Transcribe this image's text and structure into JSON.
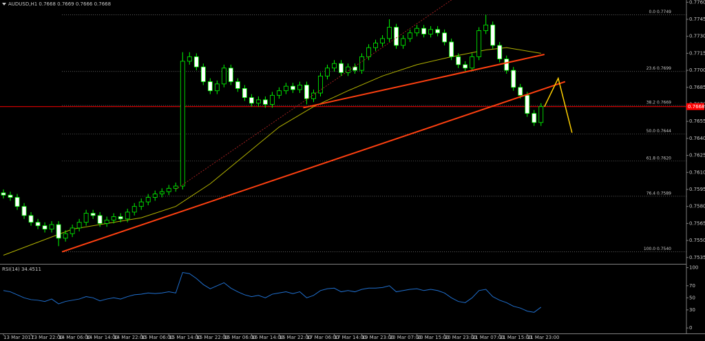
{
  "chart_data": [
    {
      "type": "candlestick",
      "title": "AUDUSD,H1 0.7668 0.7669 0.7666 0.7668",
      "color": "#00ff00",
      "up_fill": "#000000",
      "down_fill": "#ffffff",
      "open": [
        0.7592,
        0.759,
        0.7588,
        0.758,
        0.7572,
        0.7566,
        0.7563,
        0.756,
        0.7564,
        0.7552,
        0.7556,
        0.7561,
        0.7566,
        0.7574,
        0.7572,
        0.7565,
        0.7568,
        0.7571,
        0.7569,
        0.7575,
        0.758,
        0.7584,
        0.7588,
        0.7591,
        0.7593,
        0.7596,
        0.7598,
        0.7708,
        0.7712,
        0.7703,
        0.769,
        0.7682,
        0.7688,
        0.7702,
        0.769,
        0.7684,
        0.7676,
        0.7671,
        0.7674,
        0.767,
        0.7678,
        0.7682,
        0.7686,
        0.7683,
        0.7687,
        0.7675,
        0.768,
        0.7695,
        0.7702,
        0.7706,
        0.7698,
        0.7703,
        0.77,
        0.7712,
        0.772,
        0.7724,
        0.7728,
        0.7738,
        0.7722,
        0.7728,
        0.7733,
        0.7737,
        0.7732,
        0.7736,
        0.7733,
        0.7725,
        0.7712,
        0.7705,
        0.7702,
        0.7712,
        0.7735,
        0.774,
        0.7722,
        0.771,
        0.77,
        0.7685,
        0.7678,
        0.7662,
        0.7654
      ],
      "high": [
        0.7595,
        0.7593,
        0.7591,
        0.7583,
        0.7575,
        0.7569,
        0.7566,
        0.7567,
        0.7567,
        0.7559,
        0.7564,
        0.7569,
        0.7577,
        0.7577,
        0.7575,
        0.7571,
        0.7574,
        0.7574,
        0.7578,
        0.7583,
        0.7587,
        0.7591,
        0.7594,
        0.7596,
        0.7599,
        0.7601,
        0.7716,
        0.7716,
        0.7715,
        0.7706,
        0.7693,
        0.7691,
        0.7705,
        0.7705,
        0.7693,
        0.7687,
        0.7679,
        0.7677,
        0.7677,
        0.7681,
        0.7685,
        0.7689,
        0.7689,
        0.769,
        0.769,
        0.7683,
        0.7698,
        0.7705,
        0.7709,
        0.7709,
        0.7706,
        0.7706,
        0.7715,
        0.7723,
        0.7727,
        0.7731,
        0.7745,
        0.7741,
        0.7731,
        0.7736,
        0.774,
        0.774,
        0.7739,
        0.7739,
        0.7736,
        0.7728,
        0.7715,
        0.7708,
        0.7715,
        0.7738,
        0.7749,
        0.7743,
        0.7725,
        0.7713,
        0.7703,
        0.7688,
        0.7681,
        0.7665,
        0.7671
      ],
      "low": [
        0.7587,
        0.7585,
        0.7577,
        0.7569,
        0.7563,
        0.756,
        0.7557,
        0.7557,
        0.7545,
        0.7549,
        0.7553,
        0.7558,
        0.7563,
        0.7569,
        0.7562,
        0.7562,
        0.7565,
        0.7566,
        0.7566,
        0.7572,
        0.7577,
        0.7581,
        0.7585,
        0.7588,
        0.759,
        0.7593,
        0.7595,
        0.7705,
        0.77,
        0.7687,
        0.7679,
        0.7679,
        0.7685,
        0.7687,
        0.7681,
        0.7673,
        0.7668,
        0.7668,
        0.7667,
        0.7667,
        0.7675,
        0.7679,
        0.768,
        0.768,
        0.767,
        0.7672,
        0.7677,
        0.7692,
        0.7699,
        0.7695,
        0.7695,
        0.7697,
        0.7697,
        0.7709,
        0.7717,
        0.7721,
        0.7725,
        0.7719,
        0.7719,
        0.7725,
        0.773,
        0.7729,
        0.7729,
        0.773,
        0.7722,
        0.7709,
        0.7702,
        0.7699,
        0.7699,
        0.7709,
        0.7732,
        0.7719,
        0.7707,
        0.7697,
        0.7682,
        0.7675,
        0.7659,
        0.7651,
        0.7651
      ],
      "close": [
        0.759,
        0.7588,
        0.758,
        0.7572,
        0.7566,
        0.7563,
        0.756,
        0.7564,
        0.7552,
        0.7556,
        0.7561,
        0.7566,
        0.7574,
        0.7572,
        0.7565,
        0.7568,
        0.7571,
        0.7569,
        0.7575,
        0.758,
        0.7584,
        0.7588,
        0.7591,
        0.7593,
        0.7596,
        0.7598,
        0.7708,
        0.7712,
        0.7703,
        0.769,
        0.7682,
        0.7688,
        0.7702,
        0.769,
        0.7684,
        0.7676,
        0.7671,
        0.7674,
        0.767,
        0.7678,
        0.7682,
        0.7686,
        0.7683,
        0.7687,
        0.7675,
        0.768,
        0.7695,
        0.7702,
        0.7706,
        0.7698,
        0.7703,
        0.77,
        0.7712,
        0.772,
        0.7724,
        0.7728,
        0.7738,
        0.7722,
        0.7728,
        0.7733,
        0.7737,
        0.7732,
        0.7736,
        0.7733,
        0.7725,
        0.7712,
        0.7705,
        0.7702,
        0.7712,
        0.7735,
        0.774,
        0.7722,
        0.771,
        0.77,
        0.7685,
        0.7678,
        0.7662,
        0.7654,
        0.7668
      ],
      "xlim": [
        -0.5,
        99.1
      ],
      "ylim": [
        0.753,
        0.7762
      ],
      "yticks": [
        {
          "value": 0.776,
          "label": "0.7760"
        },
        {
          "value": 0.7745,
          "label": "0.7745"
        },
        {
          "value": 0.773,
          "label": "0.7730"
        },
        {
          "value": 0.7715,
          "label": "0.7715"
        },
        {
          "value": 0.77,
          "label": "0.7700"
        },
        {
          "value": 0.7685,
          "label": "0.7685"
        },
        {
          "value": 0.767,
          "label": "0.7670"
        },
        {
          "value": 0.7655,
          "label": "0.7655"
        },
        {
          "value": 0.764,
          "label": "0.7640"
        },
        {
          "value": 0.7625,
          "label": "0.7625"
        },
        {
          "value": 0.761,
          "label": "0.7610"
        },
        {
          "value": 0.7595,
          "label": "0.7595"
        },
        {
          "value": 0.758,
          "label": "0.7580"
        },
        {
          "value": 0.7565,
          "label": "0.7565"
        },
        {
          "value": 0.755,
          "label": "0.7550"
        },
        {
          "value": 0.7535,
          "label": "0.7535"
        }
      ],
      "xticks": [
        {
          "value": 0,
          "label": "13 Mar 2017"
        },
        {
          "value": 4,
          "label": "13 Mar 22:00"
        },
        {
          "value": 8,
          "label": "14 Mar 06:00"
        },
        {
          "value": 12,
          "label": "14 Mar 14:00"
        },
        {
          "value": 16,
          "label": "14 Mar 22:00"
        },
        {
          "value": 20,
          "label": "15 Mar 06:00"
        },
        {
          "value": 24,
          "label": "15 Mar 14:00"
        },
        {
          "value": 28,
          "label": "15 Mar 22:00"
        },
        {
          "value": 32,
          "label": "16 Mar 06:00"
        },
        {
          "value": 36,
          "label": "16 Mar 14:00"
        },
        {
          "value": 40,
          "label": "16 Mar 22:00"
        },
        {
          "value": 44,
          "label": "17 Mar 06:00"
        },
        {
          "value": 48,
          "label": "17 Mar 14:00"
        },
        {
          "value": 52,
          "label": "19 Mar 23:00"
        },
        {
          "value": 56,
          "label": "20 Mar 07:00"
        },
        {
          "value": 60,
          "label": "20 Mar 15:00"
        },
        {
          "value": 64,
          "label": "20 Mar 23:00"
        },
        {
          "value": 68,
          "label": "21 Mar 07:00"
        },
        {
          "value": 72,
          "label": "21 Mar 15:00"
        },
        {
          "value": 76,
          "label": "21 Mar 23:00"
        }
      ],
      "moving_average": {
        "color": "#b4b400",
        "x": [
          0,
          10,
          20,
          25,
          30,
          35,
          40,
          45,
          50,
          55,
          60,
          65,
          70,
          73,
          78
        ],
        "values": [
          0.7537,
          0.756,
          0.757,
          0.758,
          0.76,
          0.7625,
          0.765,
          0.7668,
          0.7682,
          0.7695,
          0.7705,
          0.7712,
          0.7718,
          0.772,
          0.7715
        ]
      },
      "trendlines": [
        {
          "color": "#ff4010",
          "width": 2,
          "x": [
            8.5,
            81.5
          ],
          "values": [
            0.754,
            0.769
          ]
        },
        {
          "color": "#ff4010",
          "width": 2,
          "x": [
            43.5,
            78.5
          ],
          "values": [
            0.7667,
            0.7714
          ]
        },
        {
          "color": "#ffd000",
          "width": 1.5,
          "x": [
            78.5,
            80.5,
            82.5
          ],
          "values": [
            0.7668,
            0.7693,
            0.7645
          ]
        },
        {
          "color": "#a02020",
          "width": 1,
          "dash": true,
          "x": [
            25,
            65
          ],
          "values": [
            0.7595,
            0.7762
          ]
        }
      ],
      "fibonacci": {
        "color": "#808080",
        "levels": [
          {
            "value": 0.7749,
            "label": "0.0 0.7749"
          },
          {
            "value": 0.7699,
            "label": "23.6 0.7699"
          },
          {
            "value": 0.7669,
            "label": "38.2 0.7669"
          },
          {
            "value": 0.7644,
            "label": "50.0 0.7644"
          },
          {
            "value": 0.762,
            "label": "61.8 0.7620"
          },
          {
            "value": 0.7589,
            "label": "76.4 0.7589"
          },
          {
            "value": 0.754,
            "label": "100.0 0.7540"
          }
        ]
      },
      "price_line": {
        "value": 0.7668,
        "label": "0.7668",
        "color": "#ff0000"
      }
    },
    {
      "type": "line",
      "title": "RSI(14) 34.4511",
      "color": "#2070d0",
      "values": [
        62,
        60,
        55,
        50,
        47,
        46,
        44,
        48,
        40,
        44,
        46,
        48,
        52,
        50,
        45,
        48,
        50,
        48,
        52,
        55,
        56,
        58,
        57,
        58,
        60,
        58,
        92,
        90,
        82,
        72,
        65,
        70,
        75,
        66,
        60,
        55,
        52,
        54,
        50,
        56,
        58,
        60,
        57,
        60,
        50,
        54,
        62,
        65,
        66,
        60,
        62,
        60,
        64,
        66,
        66,
        67,
        70,
        60,
        62,
        64,
        65,
        62,
        64,
        62,
        58,
        50,
        44,
        42,
        50,
        62,
        64,
        52,
        46,
        42,
        36,
        33,
        28,
        26,
        34.4511
      ],
      "xlim": [
        -0.5,
        99.1
      ],
      "ylim": [
        -9,
        104
      ],
      "yticks": [
        100,
        70,
        50,
        30,
        0
      ]
    }
  ]
}
